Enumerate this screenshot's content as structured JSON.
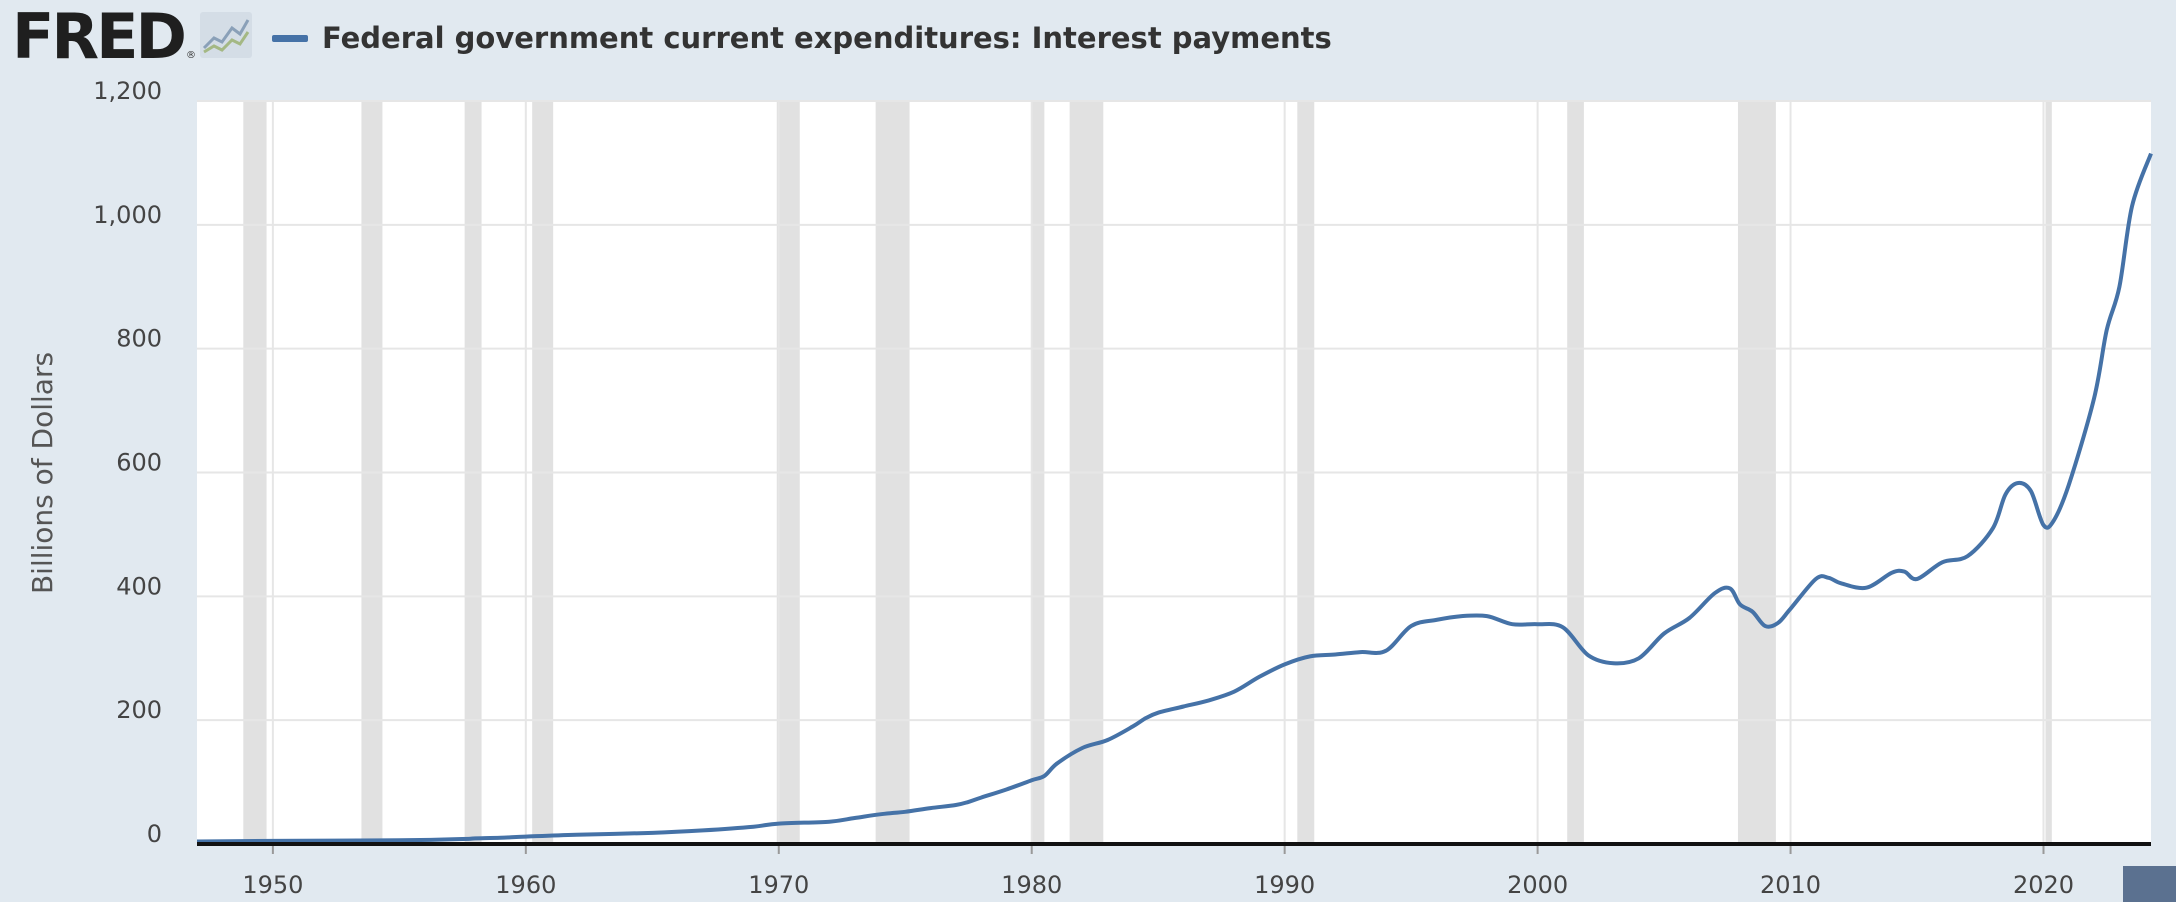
{
  "header": {
    "logo_text": "FRED",
    "logo_mark": "®",
    "logo_icon": "line-chart-icon",
    "legend_label": "Federal government current expenditures: Interest payments",
    "legend_color": "#4572a7"
  },
  "chart_data": {
    "type": "line",
    "title": "Federal government current expenditures: Interest payments",
    "xlabel": "",
    "ylabel": "Billions of Dollars",
    "xlim": [
      1947.0,
      2024.25
    ],
    "ylim": [
      0,
      1200
    ],
    "yticks": [
      0,
      200,
      400,
      600,
      800,
      1000,
      1200
    ],
    "ytick_labels": [
      "0",
      "200",
      "400",
      "600",
      "800",
      "1,000",
      "1,200"
    ],
    "xticks": [
      1950,
      1960,
      1970,
      1980,
      1990,
      2000,
      2010,
      2020
    ],
    "xtick_labels": [
      "1950",
      "1960",
      "1970",
      "1980",
      "1990",
      "2000",
      "2010",
      "2020"
    ],
    "grid": true,
    "legend_position": "top-left",
    "line_color": "#4572a7",
    "recession_color": "#e1e1e1",
    "recessions": [
      [
        1948.83,
        1949.75
      ],
      [
        1953.5,
        1954.33
      ],
      [
        1957.58,
        1958.25
      ],
      [
        1960.25,
        1961.08
      ],
      [
        1969.92,
        1970.83
      ],
      [
        1973.83,
        1975.17
      ],
      [
        1980.0,
        1980.5
      ],
      [
        1981.5,
        1982.83
      ],
      [
        1990.5,
        1991.17
      ],
      [
        2001.17,
        2001.83
      ],
      [
        2007.92,
        2009.42
      ],
      [
        2020.08,
        2020.33
      ]
    ],
    "series": [
      {
        "x": [
          1947,
          1950,
          1955,
          1957.5,
          1958,
          1959,
          1960,
          1962,
          1965,
          1967,
          1969,
          1970,
          1972,
          1973,
          1974,
          1975,
          1976,
          1977,
          1977.5,
          1978,
          1979,
          1980,
          1980.5,
          1981,
          1982,
          1983,
          1984,
          1984.5,
          1985,
          1986,
          1987,
          1988,
          1989,
          1990,
          1991,
          1992,
          1993,
          1994,
          1995,
          1996,
          1997,
          1998,
          1999,
          2000,
          2001,
          2002,
          2003,
          2004,
          2005,
          2006,
          2007,
          2007.6,
          2008,
          2008.5,
          2009,
          2009.5,
          2010,
          2011,
          2011.5,
          2012,
          2013,
          2014,
          2014.5,
          2015,
          2016,
          2017,
          2018,
          2018.5,
          2019,
          2019.5,
          2020,
          2020.4,
          2021,
          2022,
          2022.5,
          2023,
          2023.5,
          2024.25
        ],
        "y": [
          4,
          5,
          6,
          8,
          9,
          10,
          12,
          15,
          18,
          22,
          28,
          33,
          36,
          42,
          48,
          52,
          58,
          63,
          68,
          75,
          88,
          103,
          110,
          130,
          155,
          168,
          190,
          203,
          212,
          222,
          232,
          246,
          270,
          290,
          303,
          306,
          310,
          312,
          352,
          362,
          368,
          368,
          355,
          355,
          350,
          305,
          292,
          300,
          340,
          365,
          405,
          413,
          387,
          375,
          352,
          357,
          380,
          428,
          430,
          421,
          414,
          438,
          440,
          428,
          455,
          465,
          510,
          565,
          583,
          570,
          515,
          522,
          580,
          720,
          830,
          900,
          1030,
          1115
        ]
      }
    ]
  }
}
